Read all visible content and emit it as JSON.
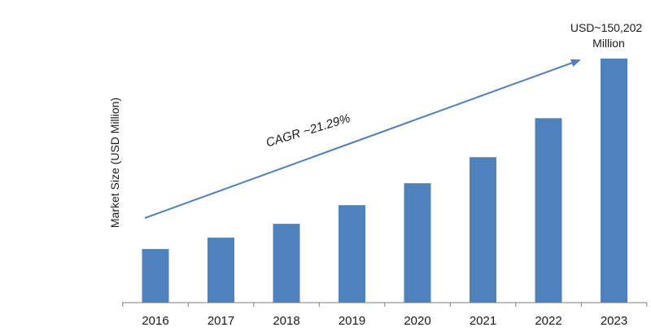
{
  "chart_data": {
    "type": "bar",
    "categories": [
      "2016",
      "2017",
      "2018",
      "2019",
      "2020",
      "2021",
      "2022",
      "2023"
    ],
    "values": [
      33000,
      40000,
      48500,
      60000,
      73500,
      89500,
      113500,
      150202
    ],
    "title": "",
    "xlabel": "",
    "ylabel": "Market Size (USD Million)",
    "ylim": [
      0,
      150202
    ],
    "grid": false,
    "colors": {
      "bar": "#4f81bd",
      "arrow": "#4f81bd",
      "axis": "#7f7f7f"
    },
    "annotations": {
      "cagr": "CAGR ~21.29%",
      "final_value_line1": "USD~150,202",
      "final_value_line2": "Million"
    }
  }
}
